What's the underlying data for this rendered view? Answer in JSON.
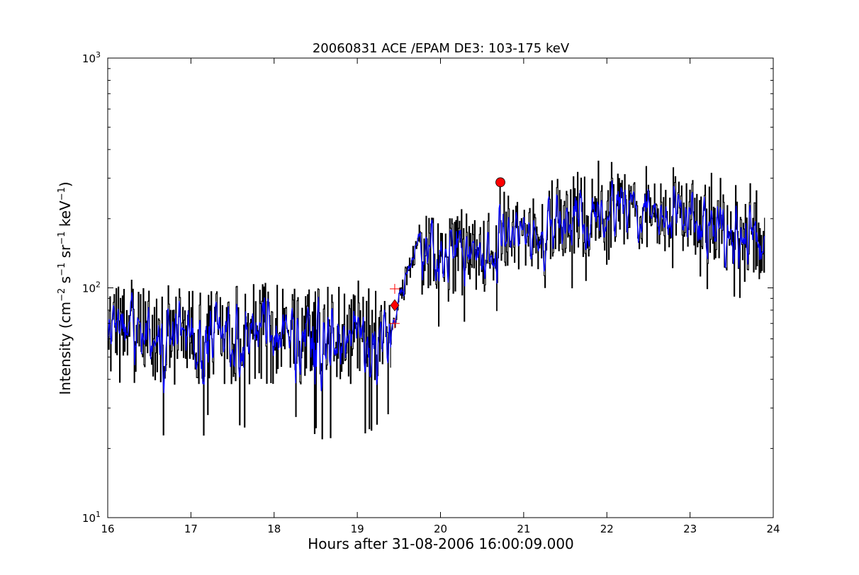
{
  "chart_data": {
    "type": "line",
    "title": "20060831 ACE /EPAM DE3: 103-175 keV",
    "xlabel": "Hours after 31-08-2006 16:00:09.000",
    "ylabel": {
      "main": "Intensity (cm",
      "parts": [
        {
          "text": "Intensity (cm",
          "sup": false
        },
        {
          "text": "−2",
          "sup": true
        },
        {
          "text": " s",
          "sup": false
        },
        {
          "text": "−1",
          "sup": true
        },
        {
          "text": " sr",
          "sup": false
        },
        {
          "text": "−1",
          "sup": true
        },
        {
          "text": " keV",
          "sup": false
        },
        {
          "text": "−1",
          "sup": true
        },
        {
          "text": ")",
          "sup": false
        }
      ]
    },
    "xlim": [
      16,
      24
    ],
    "ylim": [
      10,
      1000
    ],
    "yscale": "log",
    "xticks": [
      16,
      17,
      18,
      19,
      20,
      21,
      22,
      23,
      24
    ],
    "xtick_labels": [
      "16",
      "17",
      "18",
      "19",
      "20",
      "21",
      "22",
      "23",
      "24"
    ],
    "yticks": [
      10,
      100,
      1000
    ],
    "ytick_labels": [
      {
        "base": "10",
        "exp": "1"
      },
      {
        "base": "10",
        "exp": "2"
      },
      {
        "base": "10",
        "exp": "3"
      }
    ],
    "grid": false,
    "legend": "none",
    "series": [
      {
        "role": "raw",
        "color": "#000000",
        "segments": [
          {
            "x0": 16.0,
            "x1": 19.4,
            "base": 63,
            "amp": 0.22,
            "spike_lo": 22,
            "spike_hi": 110
          },
          {
            "x0": 19.4,
            "x1": 19.75,
            "start": 65,
            "end": 175
          },
          {
            "x0": 19.75,
            "x1": 20.68,
            "base": 140,
            "amp": 0.18,
            "spike_lo": 68,
            "spike_hi": 235
          },
          {
            "x0": 20.68,
            "x1": 20.72,
            "start": 120,
            "end": 300
          },
          {
            "x0": 20.72,
            "x1": 23.9,
            "base": 175,
            "amp": 0.17,
            "spike_lo": 90,
            "spike_hi": 310
          }
        ]
      },
      {
        "role": "smoothed",
        "color": "#0000ff"
      }
    ],
    "markers": [
      {
        "shape": "plus",
        "x": 19.45,
        "y": 99,
        "color": "#ff0000"
      },
      {
        "shape": "plus",
        "x": 19.45,
        "y": 70,
        "color": "#ff0000"
      },
      {
        "shape": "diamond",
        "x": 19.45,
        "y": 84,
        "color": "#ff0000"
      },
      {
        "shape": "circle",
        "x": 20.72,
        "y": 288,
        "color": "#ff0000"
      }
    ]
  }
}
